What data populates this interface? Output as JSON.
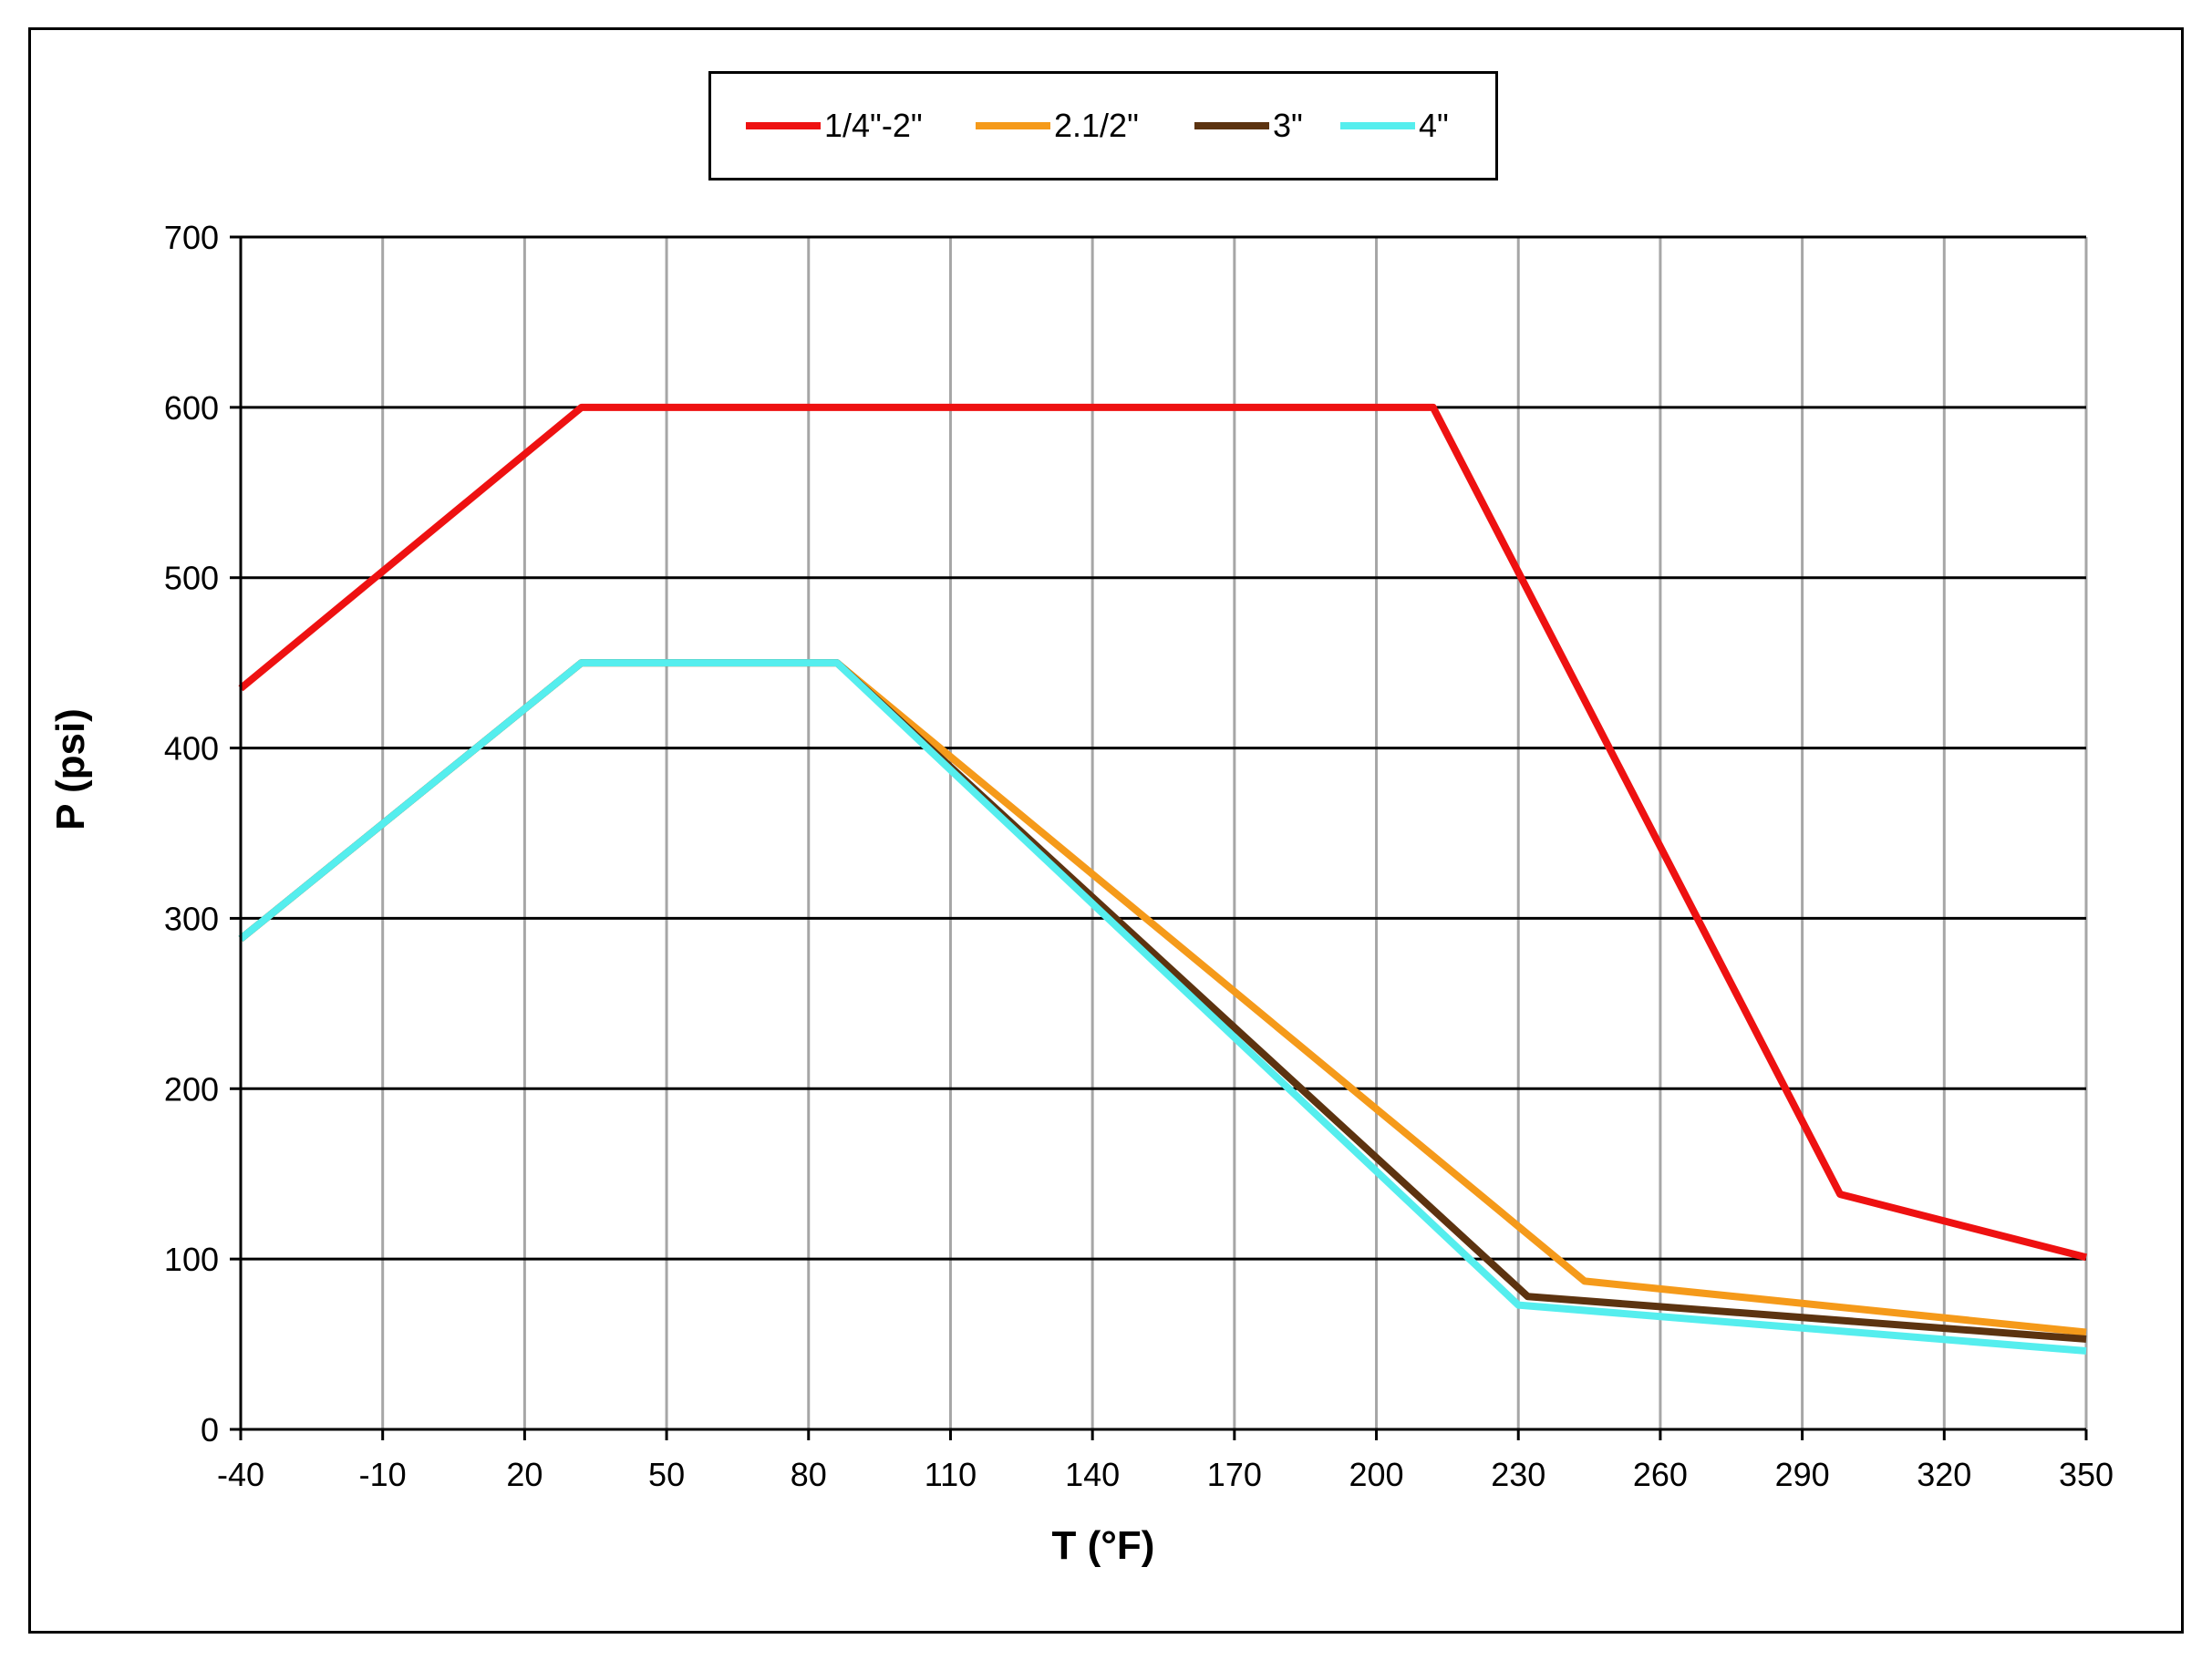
{
  "chart_data": {
    "type": "line",
    "title": "",
    "xlabel": "T (°F)",
    "ylabel": "P (psi)",
    "xlim": [
      -40,
      350
    ],
    "ylim": [
      0,
      700
    ],
    "x_ticks": [
      "-40",
      "-10",
      "20",
      "50",
      "80",
      "110",
      "140",
      "170",
      "200",
      "230",
      "260",
      "290",
      "320",
      "350"
    ],
    "y_ticks": [
      "0",
      "100",
      "200",
      "300",
      "400",
      "500",
      "600",
      "700"
    ],
    "grid": {
      "vertical": true,
      "horizontal": true
    },
    "legend_position": "top-center",
    "series": [
      {
        "name": "1/4\"-2\"",
        "color": "#ee1111",
        "points": [
          [
            -40,
            435
          ],
          [
            32,
            600
          ],
          [
            212,
            600
          ],
          [
            298,
            138
          ],
          [
            350,
            101
          ]
        ]
      },
      {
        "name": "2.1/2\"",
        "color": "#f59a1a",
        "points": [
          [
            -40,
            288
          ],
          [
            32,
            450
          ],
          [
            86,
            450
          ],
          [
            244,
            87
          ],
          [
            350,
            57
          ]
        ]
      },
      {
        "name": "3\"",
        "color": "#5c3310",
        "points": [
          [
            -40,
            288
          ],
          [
            32,
            450
          ],
          [
            86,
            450
          ],
          [
            232,
            78
          ],
          [
            350,
            53
          ]
        ]
      },
      {
        "name": "4\"",
        "color": "#55eeee",
        "points": [
          [
            -40,
            288
          ],
          [
            32,
            450
          ],
          [
            86,
            450
          ],
          [
            230,
            73
          ],
          [
            350,
            46
          ]
        ]
      }
    ]
  }
}
